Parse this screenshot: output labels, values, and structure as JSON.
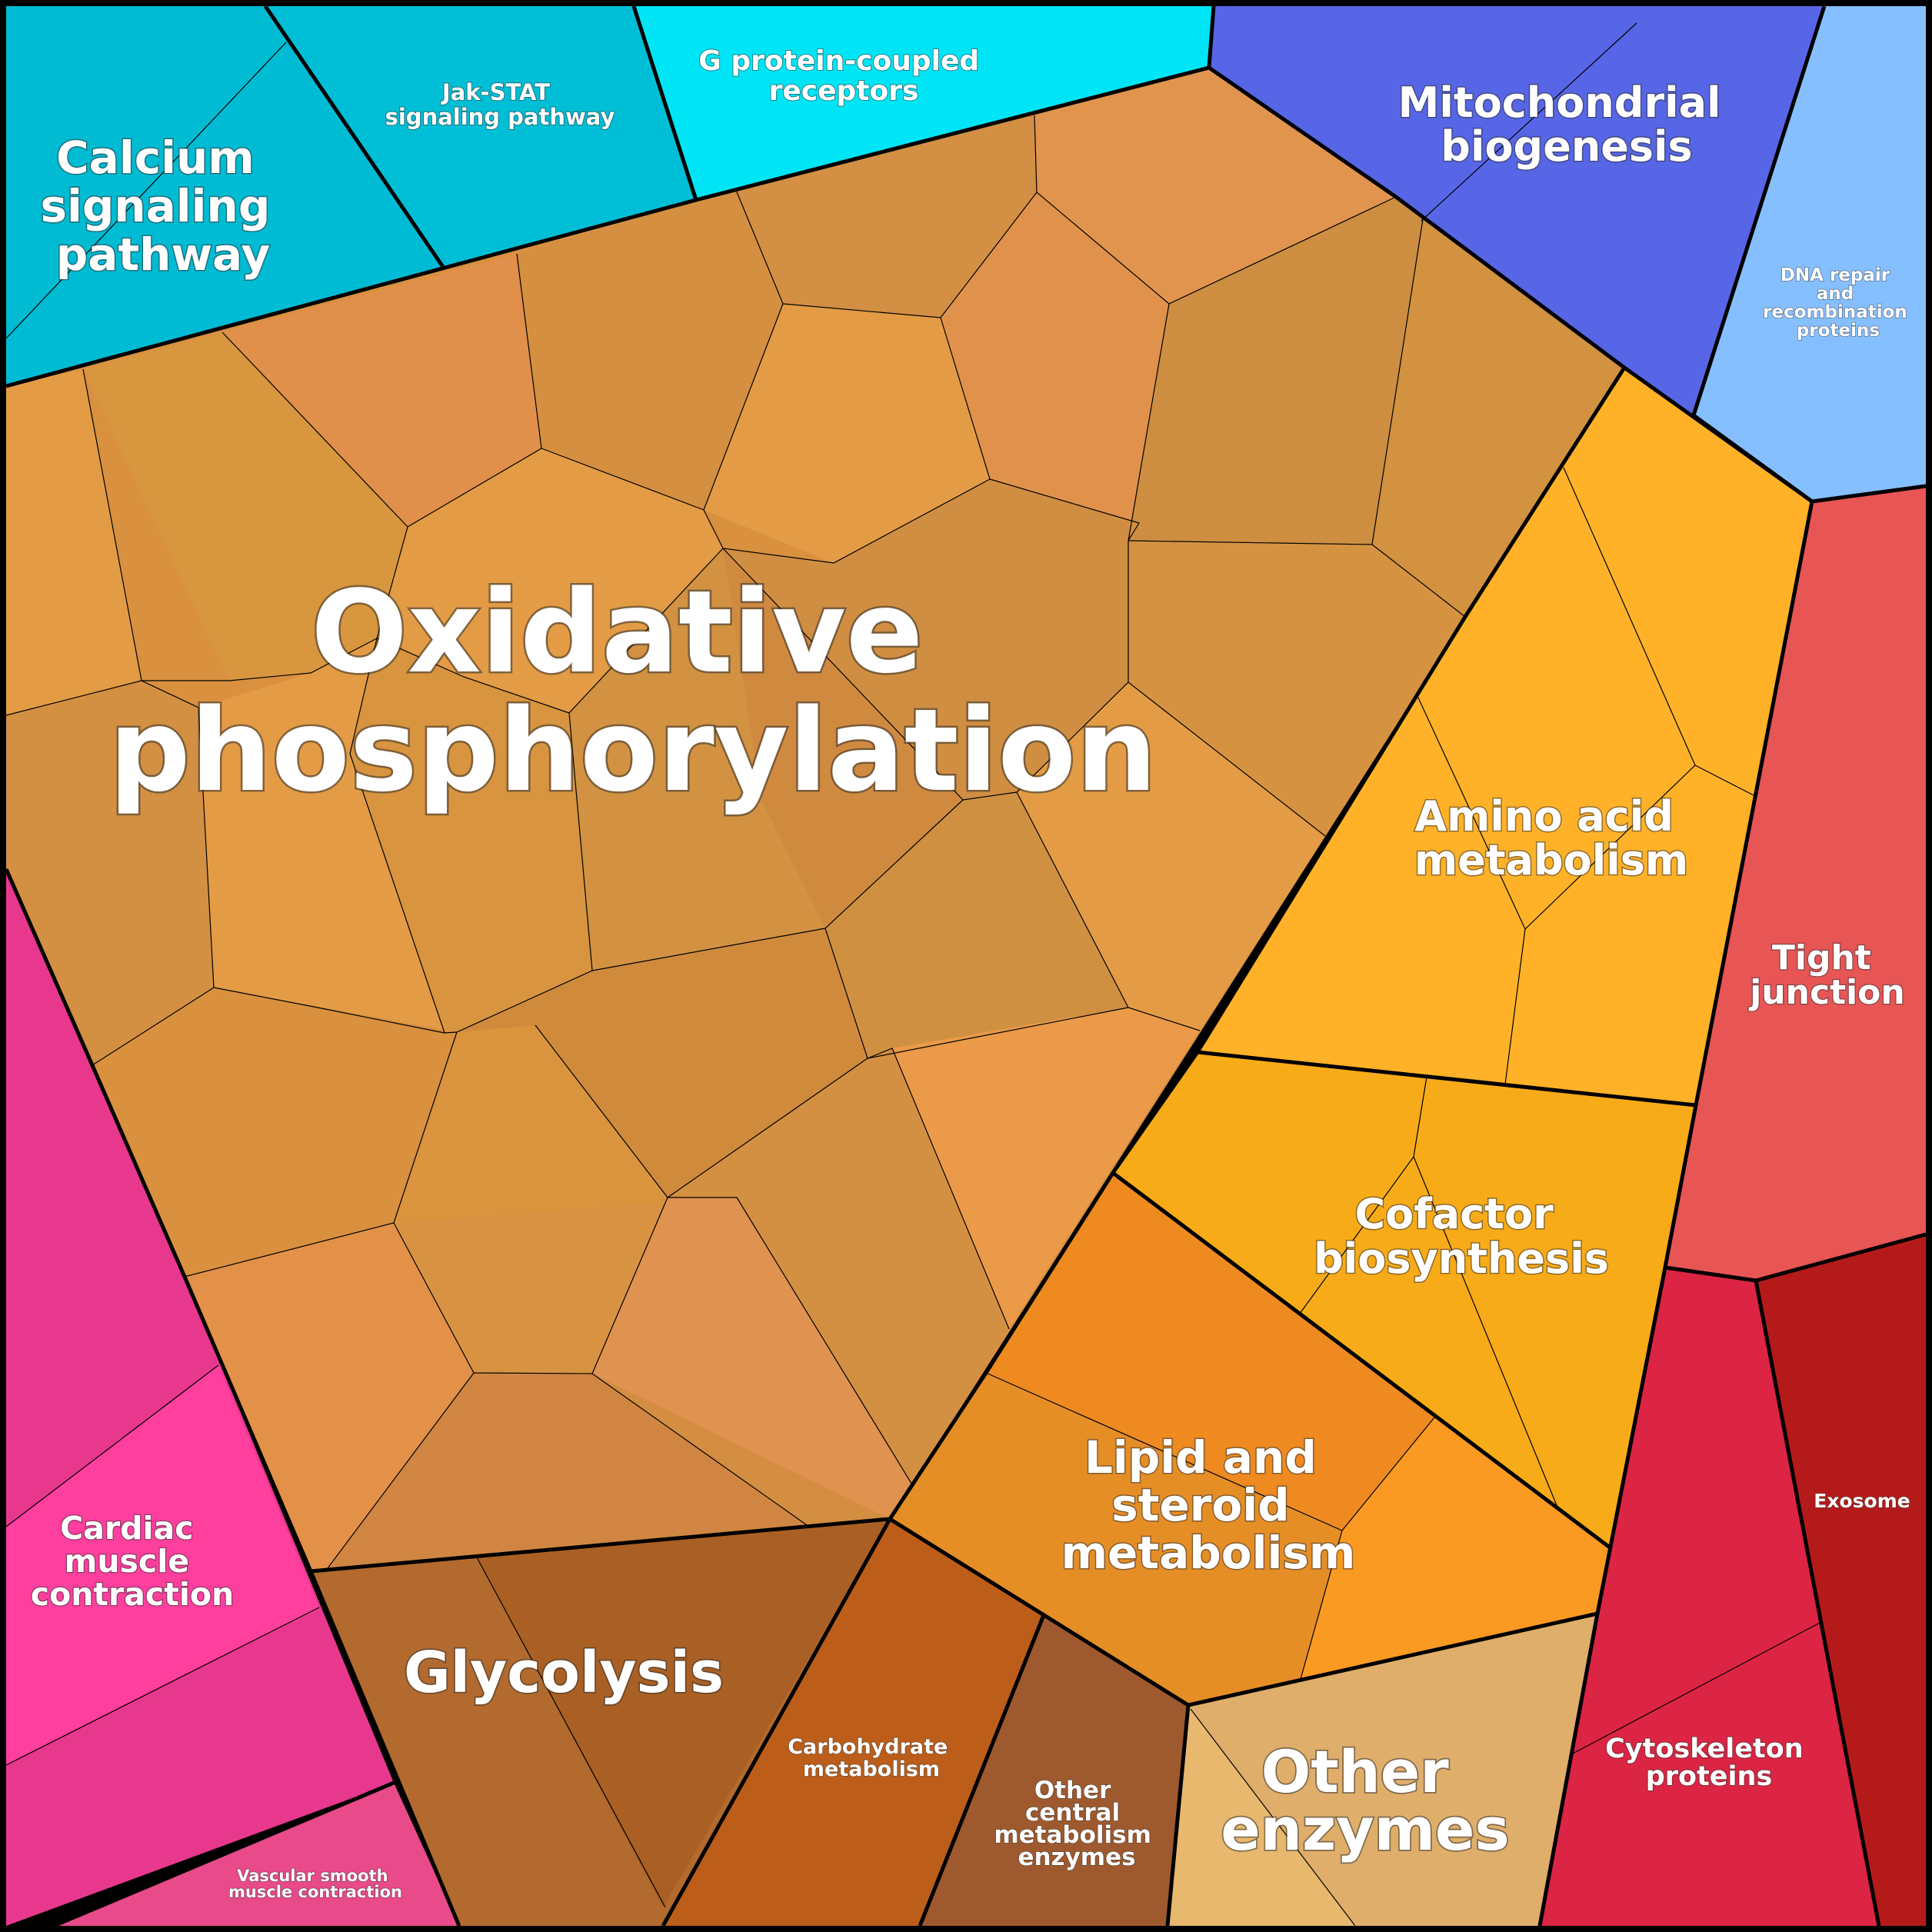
{
  "diagram": {
    "type": "voronoi-treemap",
    "regions": [
      {
        "key": "oxphos",
        "label": [
          "Oxidative",
          "phosphorylation"
        ],
        "color": "#D99040"
      },
      {
        "key": "calcium",
        "label": [
          "Calcium",
          "signaling",
          "pathway"
        ],
        "color": "#00BBD4"
      },
      {
        "key": "jakstat",
        "label": [
          "Jak-STAT",
          "signaling pathway"
        ],
        "color": "#00BED6"
      },
      {
        "key": "gpcr",
        "label": [
          "G protein-coupled",
          "receptors"
        ],
        "color": "#00E5F5"
      },
      {
        "key": "mito",
        "label": [
          "Mitochondrial",
          "biogenesis"
        ],
        "color": "#5766E6"
      },
      {
        "key": "dna",
        "label": [
          "DNA repair",
          "and",
          "recombination",
          "proteins"
        ],
        "color": "#86BFFF"
      },
      {
        "key": "amino",
        "label": [
          "Amino acid",
          "metabolism"
        ],
        "color": "#FFB227"
      },
      {
        "key": "cofactor",
        "label": [
          "Cofactor",
          "biosynthesis"
        ],
        "color": "#F8AB18"
      },
      {
        "key": "lipid",
        "label": [
          "Lipid and",
          "steroid",
          "metabolism"
        ],
        "color": "#EE8A20"
      },
      {
        "key": "tight",
        "label": [
          "Tight",
          "junction"
        ],
        "color": "#E85555"
      },
      {
        "key": "exosome",
        "label": [
          "Exosome"
        ],
        "color": "#B51A1A"
      },
      {
        "key": "cyto",
        "label": [
          "Cytoskeleton",
          "proteins"
        ],
        "color": "#DC2444"
      },
      {
        "key": "cardiac",
        "label": [
          "Cardiac",
          "muscle",
          "contraction"
        ],
        "color": "#FF3F9E"
      },
      {
        "key": "vascular",
        "label": [
          "Vascular smooth",
          "muscle contraction"
        ],
        "color": "#E84A8A"
      },
      {
        "key": "glyco",
        "label": [
          "Glycolysis"
        ],
        "color": "#B36528"
      },
      {
        "key": "carbo",
        "label": [
          "Carbohydrate",
          "metabolism"
        ],
        "color": "#BC5E1A"
      },
      {
        "key": "central",
        "label": [
          "Other",
          "central",
          "metabolism",
          "enzymes"
        ],
        "color": "#9E5A2E"
      },
      {
        "key": "other",
        "label": [
          "Other",
          "enzymes"
        ],
        "color": "#E3B068"
      }
    ]
  }
}
